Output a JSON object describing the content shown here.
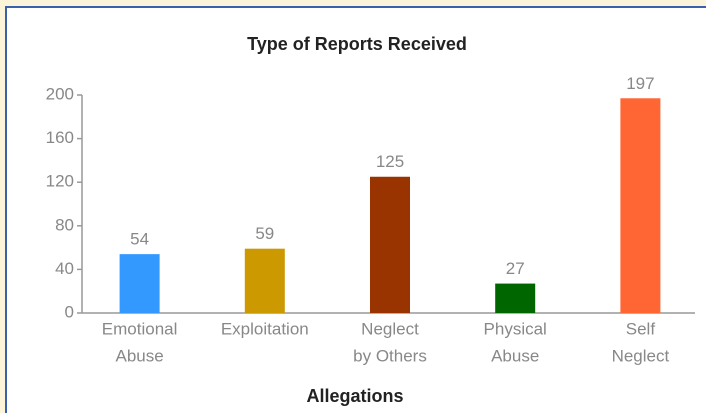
{
  "chart_data": {
    "type": "bar",
    "title": "Type of Reports Received",
    "x_label": "Allegations",
    "categories": [
      [
        "Emotional",
        "Abuse"
      ],
      [
        "Exploitation"
      ],
      [
        "Neglect",
        "by Others"
      ],
      [
        "Physical",
        "Abuse"
      ],
      [
        "Self",
        "Neglect"
      ]
    ],
    "values": [
      54,
      59,
      125,
      27,
      197
    ],
    "colors": [
      "#3399ff",
      "#cc9900",
      "#993300",
      "#006600",
      "#ff6633"
    ],
    "ylim": [
      0,
      200
    ],
    "yticks": [
      0,
      40,
      80,
      120,
      160,
      200
    ],
    "grid": false
  }
}
